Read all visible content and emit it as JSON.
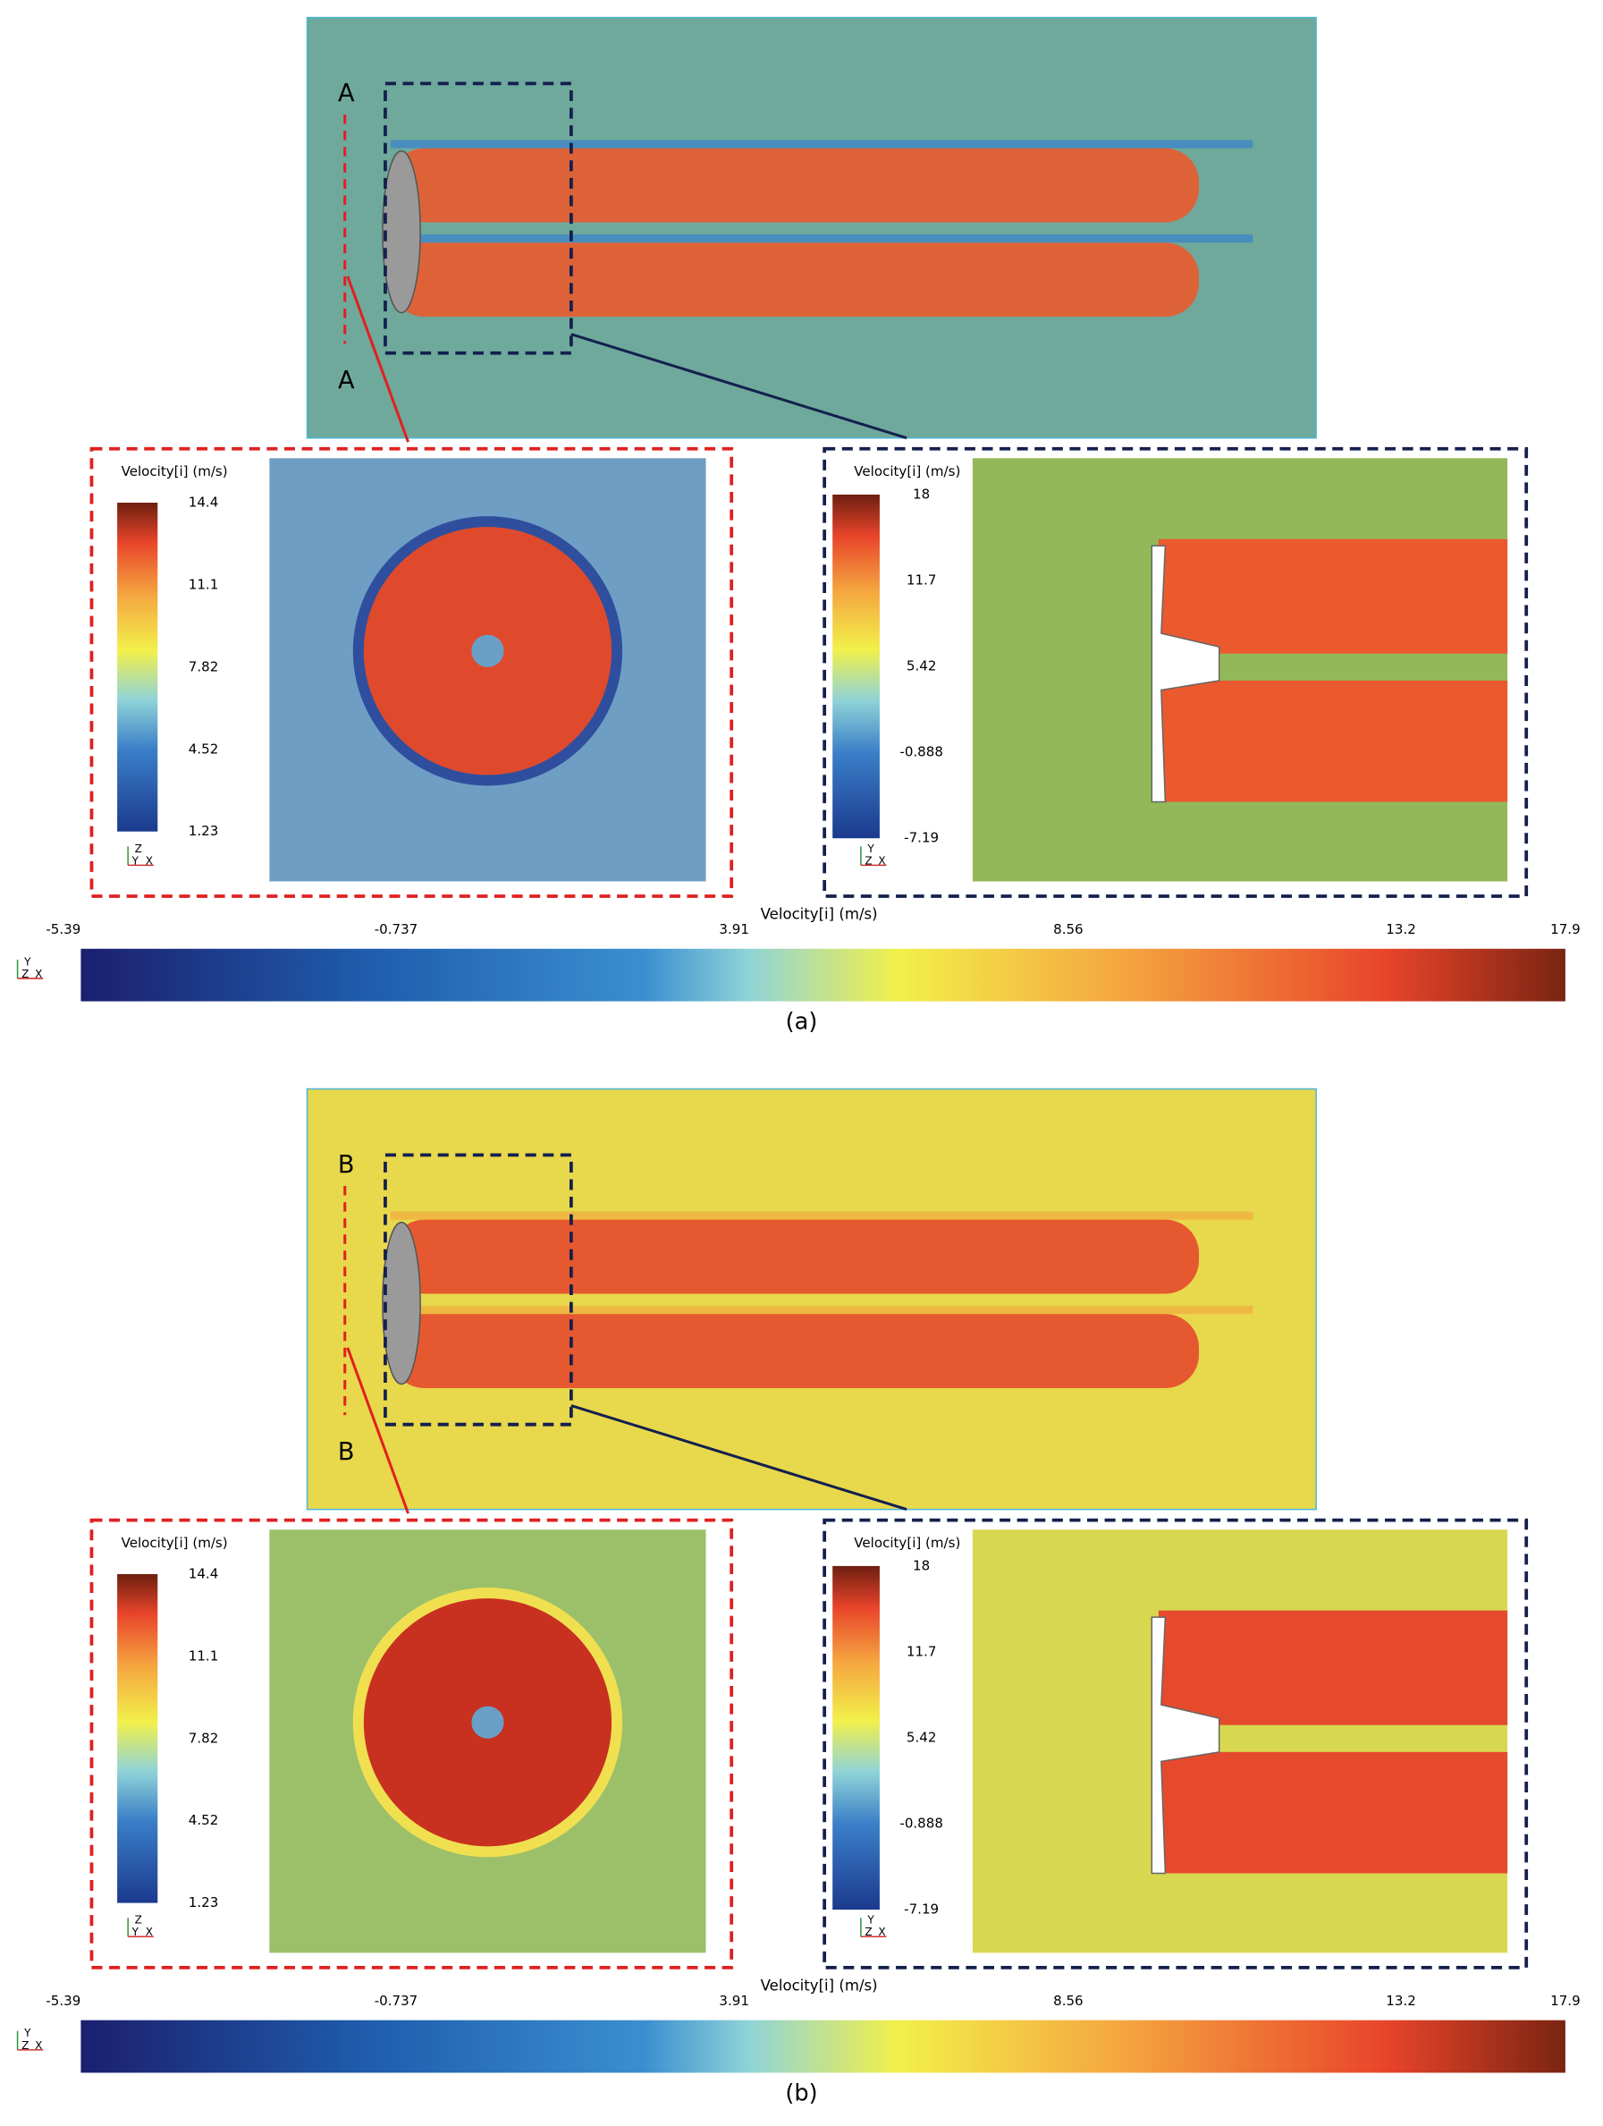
{
  "panels": [
    {
      "section_labels": [
        "A",
        "A"
      ],
      "insets": [
        {
          "legend_title": "Velocity[i] (m/s)",
          "ticks": [
            "14.4",
            "11.1",
            "7.82",
            "4.52",
            "1.23"
          ],
          "axes": [
            "Z",
            "Y",
            "X"
          ]
        },
        {
          "legend_title": "Velocity[i] (m/s)",
          "ticks": [
            "18",
            "11.7",
            "5.42",
            "-0.888",
            "-7.19"
          ],
          "axes": [
            "Y",
            "Z",
            "X"
          ]
        }
      ],
      "colorbar": {
        "title": "Velocity[i] (m/s)",
        "ticks": [
          "-5.39",
          "-0.737",
          "3.91",
          "8.56",
          "13.2",
          "17.9"
        ],
        "axes": [
          "Y",
          "Z",
          "X"
        ]
      },
      "caption": "(a)"
    },
    {
      "section_labels": [
        "B",
        "B"
      ],
      "insets": [
        {
          "legend_title": "Velocity[i] (m/s)",
          "ticks": [
            "14.4",
            "11.1",
            "7.82",
            "4.52",
            "1.23"
          ],
          "axes": [
            "Z",
            "Y",
            "X"
          ]
        },
        {
          "legend_title": "Velocity[i] (m/s)",
          "ticks": [
            "18",
            "11.7",
            "5.42",
            "-0.888",
            "-7.19"
          ],
          "axes": [
            "Y",
            "Z",
            "X"
          ]
        }
      ],
      "colorbar": {
        "title": "Velocity[i] (m/s)",
        "ticks": [
          "-5.39",
          "-0.737",
          "3.91",
          "8.56",
          "13.2",
          "17.9"
        ],
        "axes": [
          "Y",
          "Z",
          "X"
        ]
      },
      "caption": "(b)"
    }
  ]
}
